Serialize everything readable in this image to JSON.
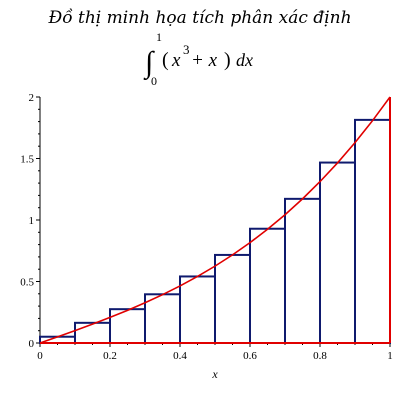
{
  "chart_data": {
    "type": "bar",
    "title": "Đồ thị minh họa tích phân xác định",
    "formula": {
      "lower": "0",
      "upper": "1",
      "integrand_base": "x",
      "exponent": "3",
      "integrand_rest": " + x",
      "dx": "dx"
    },
    "xlabel": "x",
    "ylabel": "",
    "xlim": [
      0,
      1
    ],
    "ylim": [
      0,
      2
    ],
    "x_ticks": [
      "0",
      "0.2",
      "0.4",
      "0.6",
      "0.8",
      "1"
    ],
    "y_ticks": [
      "0",
      "0.5",
      "1",
      "1.5",
      "2"
    ],
    "bins": {
      "left_edges": [
        0,
        0.1,
        0.2,
        0.3,
        0.4,
        0.5,
        0.6,
        0.7,
        0.8,
        0.9
      ],
      "width": 0.1,
      "heights": [
        0.051,
        0.164,
        0.275,
        0.396,
        0.541,
        0.716,
        0.929,
        1.172,
        1.467,
        1.814
      ]
    },
    "curve": {
      "function": "x^3 + x",
      "x": [
        0,
        0.05,
        0.1,
        0.15,
        0.2,
        0.25,
        0.3,
        0.35,
        0.4,
        0.45,
        0.5,
        0.55,
        0.6,
        0.65,
        0.7,
        0.75,
        0.8,
        0.85,
        0.9,
        0.95,
        1
      ],
      "y": [
        0,
        0.0501,
        0.101,
        0.1534,
        0.208,
        0.2656,
        0.327,
        0.3929,
        0.464,
        0.5411,
        0.625,
        0.7164,
        0.816,
        0.9246,
        1.043,
        1.1719,
        1.312,
        1.4641,
        1.629,
        1.8074,
        2
      ]
    },
    "colors": {
      "bars": "#0f1a6e",
      "curve": "#e00000",
      "axes": "#000000"
    }
  }
}
